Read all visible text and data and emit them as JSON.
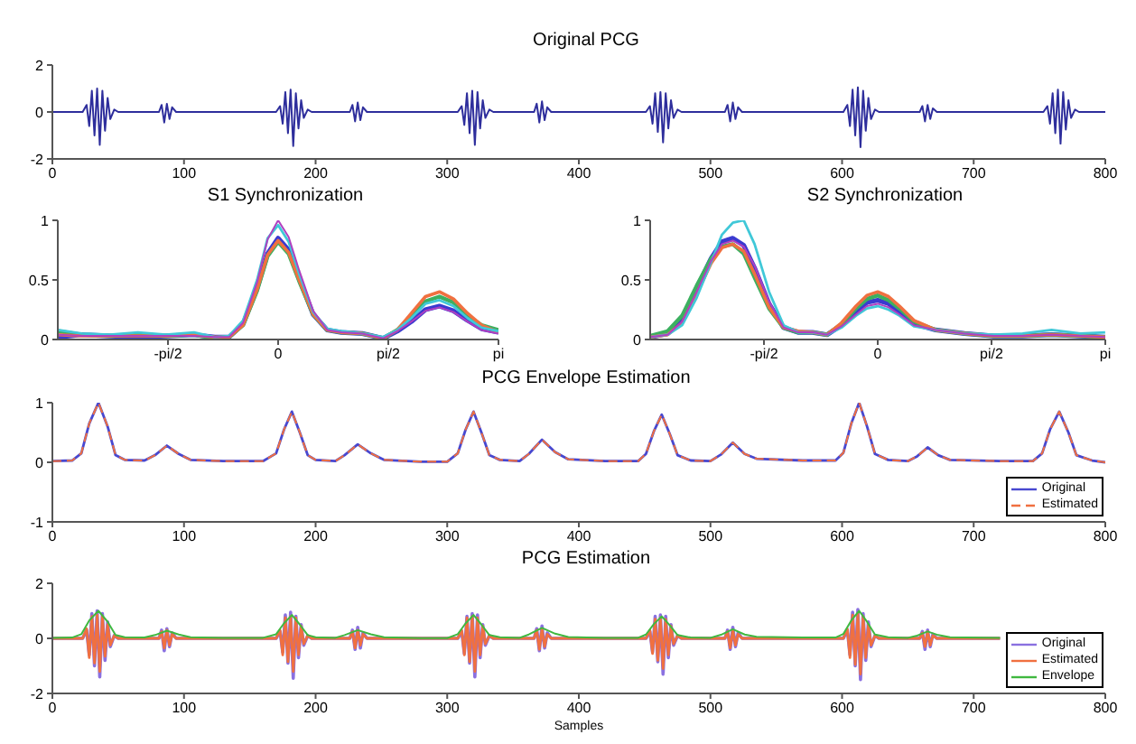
{
  "chart_data": [
    {
      "type": "line",
      "title": "Original PCG",
      "xlim": [
        0,
        800
      ],
      "xticks": [
        0,
        100,
        200,
        300,
        400,
        500,
        600,
        700,
        800
      ],
      "ylim": [
        -2,
        2
      ],
      "yticks": [
        -2,
        0,
        2
      ],
      "x": [
        0,
        10,
        20,
        23,
        26,
        28,
        30,
        32,
        34,
        36,
        38,
        40,
        42,
        44,
        47,
        50,
        65,
        81,
        83,
        85,
        87,
        89,
        91,
        94,
        110,
        140,
        160,
        170,
        173,
        175,
        177,
        179,
        181,
        183,
        185,
        187,
        189,
        191,
        194,
        197,
        215,
        226,
        228,
        230,
        232,
        234,
        236,
        239,
        260,
        290,
        308,
        311,
        313,
        315,
        317,
        319,
        321,
        323,
        325,
        327,
        329,
        332,
        335,
        355,
        366,
        368,
        370,
        372,
        374,
        376,
        379,
        400,
        430,
        451,
        454,
        456,
        458,
        460,
        462,
        464,
        466,
        468,
        470,
        472,
        475,
        478,
        495,
        511,
        513,
        515,
        517,
        519,
        521,
        524,
        545,
        575,
        601,
        604,
        606,
        608,
        610,
        612,
        614,
        616,
        618,
        620,
        622,
        625,
        628,
        645,
        659,
        661,
        663,
        665,
        667,
        669,
        672,
        690,
        720,
        740,
        753,
        756,
        758,
        760,
        762,
        764,
        766,
        768,
        770,
        772,
        774,
        777,
        780,
        790,
        800
      ],
      "series": [
        {
          "color": "#2e2e9c",
          "values": [
            0,
            0,
            0,
            0,
            0.3,
            -0.6,
            0.9,
            -1.0,
            1.0,
            -1.4,
            0.9,
            -0.8,
            0.6,
            -0.3,
            0.1,
            0,
            0,
            0,
            0.3,
            -0.45,
            0.35,
            -0.3,
            0.2,
            0,
            0,
            0,
            0,
            0,
            0.25,
            -0.5,
            0.85,
            -0.9,
            0.95,
            -1.45,
            0.8,
            -0.7,
            0.5,
            -0.25,
            0.1,
            0,
            0,
            0,
            0.3,
            -0.4,
            0.4,
            -0.35,
            0.2,
            0,
            0,
            0,
            0,
            0.25,
            -0.55,
            0.8,
            -0.9,
            0.9,
            -1.4,
            0.85,
            -0.7,
            0.5,
            -0.25,
            0.1,
            0,
            0,
            0,
            0.35,
            -0.45,
            0.45,
            -0.35,
            0.2,
            0,
            0,
            0,
            0,
            0.25,
            -0.5,
            0.8,
            -0.85,
            0.85,
            -1.3,
            0.8,
            -0.7,
            0.5,
            -0.25,
            0.1,
            0,
            0,
            0,
            0.3,
            -0.4,
            0.4,
            -0.3,
            0.2,
            0,
            0,
            0,
            0,
            0.3,
            -0.6,
            0.95,
            -1.0,
            1.05,
            -1.5,
            0.9,
            -0.8,
            0.6,
            -0.3,
            0.1,
            0,
            0,
            0,
            0.25,
            -0.4,
            0.3,
            -0.3,
            0.15,
            0,
            0,
            0,
            0,
            0,
            0.25,
            -0.5,
            0.8,
            -0.9,
            0.95,
            -1.35,
            0.85,
            -0.75,
            0.5,
            -0.25,
            0.1,
            0,
            0,
            0
          ]
        }
      ]
    },
    {
      "type": "line",
      "title": "S1 Synchronization",
      "xlim": [
        -3.1416,
        3.1416
      ],
      "xticks": [
        {
          "value": -1.5708,
          "label": "-pi/2"
        },
        0,
        {
          "value": 1.5708,
          "label": "pi/2"
        },
        {
          "value": 3.1416,
          "label": "pi"
        }
      ],
      "ylim": [
        0,
        1
      ],
      "yticks": [
        0,
        0.5,
        1
      ],
      "x": [
        -3.14,
        -2.8,
        -2.4,
        -2.0,
        -1.6,
        -1.2,
        -0.9,
        -0.7,
        -0.5,
        -0.3,
        -0.15,
        0,
        0.15,
        0.3,
        0.5,
        0.7,
        0.9,
        1.2,
        1.5,
        1.7,
        1.9,
        2.1,
        2.3,
        2.5,
        2.7,
        2.9,
        3.14
      ],
      "series": [
        {
          "color": "#3a3ad0",
          "values": [
            0.02,
            0.04,
            0.03,
            0.02,
            0.03,
            0.04,
            0.02,
            0.02,
            0.13,
            0.43,
            0.72,
            0.85,
            0.75,
            0.51,
            0.21,
            0.08,
            0.06,
            0.05,
            0.01,
            0.07,
            0.15,
            0.25,
            0.28,
            0.24,
            0.16,
            0.09,
            0.06
          ]
        },
        {
          "color": "#3cb060",
          "values": [
            0.07,
            0.04,
            0.03,
            0.04,
            0.03,
            0.04,
            0.01,
            0.02,
            0.12,
            0.41,
            0.7,
            0.82,
            0.72,
            0.49,
            0.21,
            0.08,
            0.06,
            0.05,
            0.01,
            0.08,
            0.2,
            0.32,
            0.36,
            0.31,
            0.2,
            0.12,
            0.08
          ]
        },
        {
          "color": "#f07040",
          "values": [
            0.04,
            0.03,
            0.03,
            0.03,
            0.03,
            0.04,
            0.02,
            0.02,
            0.12,
            0.42,
            0.71,
            0.83,
            0.73,
            0.5,
            0.21,
            0.08,
            0.06,
            0.05,
            0.01,
            0.08,
            0.22,
            0.36,
            0.4,
            0.34,
            0.22,
            0.12,
            0.06
          ]
        },
        {
          "color": "#40c8d8",
          "values": [
            0.08,
            0.05,
            0.04,
            0.06,
            0.04,
            0.06,
            0.02,
            0.03,
            0.16,
            0.5,
            0.85,
            0.96,
            0.82,
            0.55,
            0.23,
            0.09,
            0.07,
            0.05,
            0.02,
            0.08,
            0.18,
            0.3,
            0.33,
            0.28,
            0.18,
            0.1,
            0.07
          ]
        },
        {
          "color": "#b040c0",
          "values": [
            0.04,
            0.03,
            0.03,
            0.03,
            0.03,
            0.03,
            0.02,
            0.02,
            0.14,
            0.48,
            0.84,
            1.0,
            0.86,
            0.58,
            0.24,
            0.08,
            0.06,
            0.05,
            0.01,
            0.07,
            0.15,
            0.24,
            0.27,
            0.23,
            0.15,
            0.08,
            0.05
          ]
        }
      ]
    },
    {
      "type": "line",
      "title": "S2 Synchronization",
      "xlim": [
        -3.1416,
        3.1416
      ],
      "xticks": [
        {
          "value": -1.5708,
          "label": "-pi/2"
        },
        0,
        {
          "value": 1.5708,
          "label": "pi/2"
        },
        {
          "value": 3.1416,
          "label": "pi"
        }
      ],
      "ylim": [
        0,
        1
      ],
      "yticks": [
        0,
        0.5,
        1
      ],
      "x": [
        -3.14,
        -2.9,
        -2.7,
        -2.5,
        -2.3,
        -2.15,
        -2.0,
        -1.85,
        -1.7,
        -1.5,
        -1.3,
        -1.1,
        -0.9,
        -0.7,
        -0.5,
        -0.3,
        -0.15,
        0,
        0.15,
        0.3,
        0.5,
        0.8,
        1.2,
        1.6,
        2.0,
        2.4,
        2.8,
        3.14
      ],
      "series": [
        {
          "color": "#3a3ad0",
          "values": [
            0.02,
            0.05,
            0.17,
            0.43,
            0.68,
            0.82,
            0.85,
            0.79,
            0.6,
            0.3,
            0.1,
            0.06,
            0.06,
            0.04,
            0.12,
            0.23,
            0.31,
            0.33,
            0.3,
            0.23,
            0.13,
            0.08,
            0.05,
            0.03,
            0.03,
            0.04,
            0.03,
            0.02
          ]
        },
        {
          "color": "#3cb060",
          "values": [
            0.03,
            0.07,
            0.2,
            0.45,
            0.68,
            0.78,
            0.8,
            0.72,
            0.52,
            0.26,
            0.1,
            0.06,
            0.06,
            0.04,
            0.13,
            0.26,
            0.34,
            0.37,
            0.33,
            0.26,
            0.15,
            0.08,
            0.05,
            0.03,
            0.03,
            0.04,
            0.03,
            0.02
          ]
        },
        {
          "color": "#f07040",
          "values": [
            0.02,
            0.04,
            0.14,
            0.38,
            0.64,
            0.77,
            0.8,
            0.74,
            0.55,
            0.27,
            0.1,
            0.07,
            0.06,
            0.04,
            0.14,
            0.28,
            0.37,
            0.4,
            0.36,
            0.28,
            0.16,
            0.08,
            0.05,
            0.03,
            0.03,
            0.04,
            0.03,
            0.02
          ]
        },
        {
          "color": "#40c8d8",
          "values": [
            0.02,
            0.04,
            0.12,
            0.35,
            0.65,
            0.88,
            0.98,
            1.0,
            0.8,
            0.4,
            0.12,
            0.06,
            0.06,
            0.04,
            0.1,
            0.2,
            0.26,
            0.28,
            0.25,
            0.2,
            0.11,
            0.08,
            0.05,
            0.04,
            0.05,
            0.08,
            0.05,
            0.06
          ]
        },
        {
          "color": "#b040c0",
          "values": [
            0.02,
            0.04,
            0.15,
            0.4,
            0.66,
            0.8,
            0.83,
            0.78,
            0.62,
            0.32,
            0.1,
            0.06,
            0.06,
            0.04,
            0.11,
            0.21,
            0.28,
            0.3,
            0.27,
            0.21,
            0.12,
            0.08,
            0.05,
            0.03,
            0.03,
            0.04,
            0.03,
            0.02
          ]
        }
      ]
    },
    {
      "type": "line",
      "title": "PCG Envelope Estimation",
      "xlim": [
        0,
        800
      ],
      "xticks": [
        0,
        100,
        200,
        300,
        400,
        500,
        600,
        700,
        800
      ],
      "ylim": [
        -1,
        1
      ],
      "yticks": [
        -1,
        0,
        1
      ],
      "legend": "bottom right",
      "x": [
        0,
        15,
        22,
        28,
        35,
        42,
        48,
        55,
        70,
        78,
        87,
        96,
        105,
        130,
        160,
        170,
        176,
        182,
        188,
        194,
        200,
        215,
        222,
        232,
        242,
        252,
        280,
        300,
        308,
        314,
        320,
        326,
        332,
        340,
        355,
        362,
        372,
        382,
        392,
        420,
        445,
        451,
        457,
        463,
        469,
        475,
        485,
        500,
        508,
        517,
        526,
        535,
        570,
        595,
        601,
        607,
        613,
        619,
        625,
        635,
        650,
        657,
        665,
        673,
        682,
        720,
        745,
        752,
        758,
        765,
        772,
        778,
        790,
        800
      ],
      "series": [
        {
          "name": "Original",
          "color": "#4848d0",
          "values": [
            0.02,
            0.03,
            0.15,
            0.65,
            1.0,
            0.6,
            0.12,
            0.04,
            0.03,
            0.12,
            0.28,
            0.14,
            0.04,
            0.02,
            0.02,
            0.15,
            0.55,
            0.85,
            0.5,
            0.12,
            0.04,
            0.02,
            0.12,
            0.3,
            0.15,
            0.04,
            0.01,
            0.01,
            0.15,
            0.55,
            0.85,
            0.5,
            0.12,
            0.04,
            0.02,
            0.14,
            0.38,
            0.17,
            0.05,
            0.02,
            0.02,
            0.14,
            0.52,
            0.8,
            0.48,
            0.12,
            0.03,
            0.02,
            0.13,
            0.33,
            0.14,
            0.06,
            0.03,
            0.03,
            0.16,
            0.65,
            1.0,
            0.6,
            0.14,
            0.04,
            0.02,
            0.1,
            0.25,
            0.12,
            0.04,
            0.02,
            0.02,
            0.15,
            0.55,
            0.85,
            0.5,
            0.12,
            0.03,
            0.0
          ]
        },
        {
          "name": "Estimated",
          "color": "#f07040",
          "line_style": "dashed",
          "values": [
            0.02,
            0.03,
            0.15,
            0.65,
            1.0,
            0.6,
            0.12,
            0.04,
            0.03,
            0.12,
            0.28,
            0.14,
            0.04,
            0.02,
            0.02,
            0.15,
            0.55,
            0.85,
            0.5,
            0.12,
            0.04,
            0.02,
            0.12,
            0.3,
            0.15,
            0.04,
            0.01,
            0.01,
            0.15,
            0.55,
            0.85,
            0.5,
            0.12,
            0.04,
            0.02,
            0.14,
            0.38,
            0.17,
            0.05,
            0.02,
            0.02,
            0.14,
            0.52,
            0.8,
            0.48,
            0.12,
            0.03,
            0.02,
            0.13,
            0.33,
            0.14,
            0.06,
            0.03,
            0.03,
            0.16,
            0.65,
            1.0,
            0.6,
            0.14,
            0.04,
            0.02,
            0.1,
            0.25,
            0.12,
            0.04,
            0.02,
            0.02,
            0.15,
            0.55,
            0.85,
            0.5,
            0.12,
            0.03,
            0.0
          ]
        }
      ]
    },
    {
      "type": "line",
      "title": "PCG Estimation",
      "xlabel": "Samples",
      "xlim": [
        0,
        800
      ],
      "xticks": [
        0,
        100,
        200,
        300,
        400,
        500,
        600,
        700,
        800
      ],
      "ylim": [
        -2,
        2
      ],
      "yticks": [
        -2,
        0,
        2
      ],
      "legend": "bottom right",
      "x": [
        0,
        10,
        20,
        23,
        26,
        28,
        30,
        32,
        34,
        36,
        38,
        40,
        42,
        44,
        47,
        50,
        65,
        81,
        83,
        85,
        87,
        89,
        91,
        94,
        110,
        140,
        160,
        170,
        173,
        175,
        177,
        179,
        181,
        183,
        185,
        187,
        189,
        191,
        194,
        197,
        215,
        226,
        228,
        230,
        232,
        234,
        236,
        239,
        260,
        290,
        308,
        311,
        313,
        315,
        317,
        319,
        321,
        323,
        325,
        327,
        329,
        332,
        335,
        355,
        366,
        368,
        370,
        372,
        374,
        376,
        379,
        400,
        430,
        451,
        454,
        456,
        458,
        460,
        462,
        464,
        466,
        468,
        470,
        472,
        475,
        478,
        495,
        511,
        513,
        515,
        517,
        519,
        521,
        524,
        545,
        575,
        601,
        604,
        606,
        608,
        610,
        612,
        614,
        616,
        618,
        620,
        622,
        625,
        628,
        645,
        659,
        661,
        663,
        665,
        667,
        669,
        672,
        690,
        720
      ],
      "series": [
        {
          "name": "Original",
          "color": "#8a70e0",
          "values": [
            0,
            0,
            0,
            0,
            0.3,
            -0.6,
            0.9,
            -1.0,
            1.0,
            -1.4,
            0.9,
            -0.8,
            0.6,
            -0.3,
            0.1,
            0,
            0,
            0,
            0.3,
            -0.45,
            0.35,
            -0.3,
            0.2,
            0,
            0,
            0,
            0,
            0,
            0.25,
            -0.5,
            0.85,
            -0.9,
            0.95,
            -1.45,
            0.8,
            -0.7,
            0.5,
            -0.25,
            0.1,
            0,
            0,
            0,
            0.3,
            -0.4,
            0.4,
            -0.35,
            0.2,
            0,
            0,
            0,
            0,
            0.25,
            -0.55,
            0.8,
            -0.9,
            0.9,
            -1.4,
            0.85,
            -0.7,
            0.5,
            -0.25,
            0.1,
            0,
            0,
            0,
            0.35,
            -0.45,
            0.45,
            -0.35,
            0.2,
            0,
            0,
            0,
            0,
            0.25,
            -0.5,
            0.8,
            -0.85,
            0.85,
            -1.3,
            0.8,
            -0.7,
            0.5,
            -0.25,
            0.1,
            0,
            0,
            0,
            0.3,
            -0.4,
            0.4,
            -0.3,
            0.2,
            0,
            0,
            0,
            0,
            0.3,
            -0.6,
            0.95,
            -1.0,
            1.05,
            -1.5,
            0.9,
            -0.8,
            0.6,
            -0.3,
            0.1,
            0,
            0,
            0,
            0.25,
            -0.4,
            0.3,
            -0.3,
            0.15,
            0,
            0,
            0
          ]
        },
        {
          "name": "Estimated",
          "color": "#f07040",
          "values": [
            0,
            0,
            0,
            0,
            0.35,
            -0.7,
            0.8,
            -0.9,
            0.85,
            -1.2,
            0.8,
            -0.65,
            0.5,
            -0.25,
            0.1,
            0,
            0,
            0,
            0.25,
            -0.35,
            0.3,
            -0.25,
            0.15,
            0,
            0,
            0,
            0,
            0,
            0.3,
            -0.6,
            0.75,
            -0.85,
            0.8,
            -1.2,
            0.75,
            -0.6,
            0.45,
            -0.2,
            0.1,
            0,
            0,
            0,
            0.25,
            -0.35,
            0.3,
            -0.25,
            0.15,
            0,
            0,
            0,
            0,
            0.3,
            -0.6,
            0.75,
            -0.85,
            0.8,
            -1.2,
            0.75,
            -0.6,
            0.45,
            -0.2,
            0.1,
            0,
            0,
            0,
            0.3,
            -0.4,
            0.35,
            -0.3,
            0.15,
            0,
            0,
            0,
            0,
            0.3,
            -0.55,
            0.7,
            -0.8,
            0.75,
            -1.1,
            0.7,
            -0.6,
            0.45,
            -0.2,
            0.1,
            0,
            0,
            0,
            0.25,
            -0.35,
            0.3,
            -0.25,
            0.15,
            0,
            0,
            0,
            0,
            0.35,
            -0.7,
            0.85,
            -0.95,
            0.9,
            -1.3,
            0.8,
            -0.7,
            0.5,
            -0.25,
            0.1,
            0,
            0,
            0,
            0.2,
            -0.3,
            0.25,
            -0.25,
            0.1,
            0,
            0,
            0
          ]
        },
        {
          "name": "Envelope",
          "color": "#40b840",
          "x": [
            0,
            15,
            22,
            28,
            35,
            42,
            48,
            55,
            70,
            78,
            87,
            96,
            105,
            130,
            160,
            170,
            176,
            182,
            188,
            194,
            200,
            215,
            222,
            232,
            242,
            252,
            280,
            300,
            308,
            314,
            320,
            326,
            332,
            340,
            355,
            362,
            372,
            382,
            392,
            420,
            445,
            451,
            457,
            463,
            469,
            475,
            485,
            500,
            508,
            517,
            526,
            535,
            570,
            595,
            601,
            607,
            613,
            619,
            625,
            635,
            650,
            657,
            665,
            673,
            682,
            720
          ],
          "values": [
            0.02,
            0.03,
            0.15,
            0.65,
            1.0,
            0.6,
            0.12,
            0.04,
            0.03,
            0.12,
            0.28,
            0.14,
            0.04,
            0.02,
            0.02,
            0.15,
            0.55,
            0.85,
            0.5,
            0.12,
            0.04,
            0.02,
            0.12,
            0.3,
            0.15,
            0.04,
            0.01,
            0.01,
            0.15,
            0.55,
            0.85,
            0.5,
            0.12,
            0.04,
            0.02,
            0.14,
            0.38,
            0.17,
            0.05,
            0.02,
            0.02,
            0.14,
            0.52,
            0.8,
            0.48,
            0.12,
            0.03,
            0.02,
            0.13,
            0.33,
            0.14,
            0.06,
            0.03,
            0.03,
            0.16,
            0.65,
            1.0,
            0.6,
            0.14,
            0.04,
            0.02,
            0.1,
            0.25,
            0.12,
            0.04,
            0.02
          ]
        }
      ]
    }
  ]
}
